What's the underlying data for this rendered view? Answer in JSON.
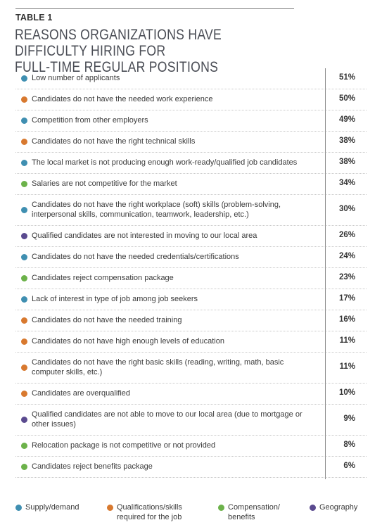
{
  "header": {
    "table_label": "TABLE 1",
    "title_line1": "REASONS ORGANIZATIONS HAVE DIFFICULTY HIRING FOR",
    "title_line2": "FULL-TIME REGULAR POSITIONS"
  },
  "colors": {
    "supply_demand": "#3f8fb1",
    "qualifications": "#d8792f",
    "compensation": "#6cb24a",
    "geography": "#5a4a8f"
  },
  "chart_data": {
    "type": "table",
    "title": "REASONS ORGANIZATIONS HAVE DIFFICULTY HIRING FOR FULL-TIME REGULAR POSITIONS",
    "rows": [
      {
        "label": "Low number of applicants",
        "value": "51%",
        "category": "supply_demand"
      },
      {
        "label": "Candidates do not have the needed work experience",
        "value": "50%",
        "category": "qualifications"
      },
      {
        "label": "Competition from other employers",
        "value": "49%",
        "category": "supply_demand"
      },
      {
        "label": "Candidates do not have the right technical skills",
        "value": "38%",
        "category": "qualifications"
      },
      {
        "label": "The local market is not producing enough work-ready/qualified job candidates",
        "value": "38%",
        "category": "supply_demand"
      },
      {
        "label": "Salaries are not competitive for the market",
        "value": "34%",
        "category": "compensation"
      },
      {
        "label": "Candidates do not have the right workplace (soft) skills (problem-solving, interpersonal skills, communication, teamwork, leadership, etc.)",
        "value": "30%",
        "category": "supply_demand"
      },
      {
        "label": "Qualified candidates are not interested in moving to our local area",
        "value": "26%",
        "category": "geography"
      },
      {
        "label": "Candidates do not have the needed credentials/certifications",
        "value": "24%",
        "category": "supply_demand"
      },
      {
        "label": "Candidates reject compensation package",
        "value": "23%",
        "category": "compensation"
      },
      {
        "label": "Lack of interest in type of job among job seekers",
        "value": "17%",
        "category": "supply_demand"
      },
      {
        "label": "Candidates do not have the needed training",
        "value": "16%",
        "category": "qualifications"
      },
      {
        "label": "Candidates do not have high enough levels of education",
        "value": "11%",
        "category": "qualifications"
      },
      {
        "label": "Candidates do not have the right basic skills (reading, writing, math, basic computer skills, etc.)",
        "value": "11%",
        "category": "qualifications"
      },
      {
        "label": "Candidates are overqualified",
        "value": "10%",
        "category": "qualifications"
      },
      {
        "label": "Qualified candidates are not able to move to our local area (due to mortgage or other issues)",
        "value": "9%",
        "category": "geography"
      },
      {
        "label": "Relocation package is not competitive or not provided",
        "value": "8%",
        "category": "compensation"
      },
      {
        "label": "Candidates reject benefits package",
        "value": "6%",
        "category": "compensation"
      }
    ],
    "legend": [
      {
        "key": "supply_demand",
        "lines": [
          "Supply/demand"
        ]
      },
      {
        "key": "qualifications",
        "lines": [
          "Qualifications/skills",
          "required for the job"
        ]
      },
      {
        "key": "compensation",
        "lines": [
          "Compensation/",
          "benefits"
        ]
      },
      {
        "key": "geography",
        "lines": [
          "Geography"
        ]
      }
    ]
  }
}
